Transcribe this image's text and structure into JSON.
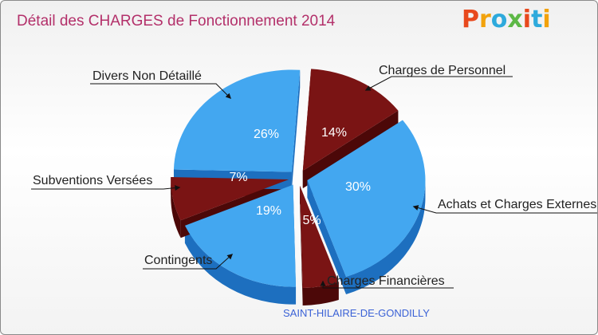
{
  "title": "Détail des CHARGES de Fonctionnement 2014",
  "logo": {
    "letters": [
      "P",
      "r",
      "o",
      "x",
      "i",
      "t",
      "i"
    ],
    "colors": [
      "#e8491d",
      "#f2a20c",
      "#2eaadc",
      "#5db846",
      "#e8491d",
      "#2eaadc",
      "#f2a20c"
    ]
  },
  "place_name": "SAINT-HILAIRE-DE-GONDILLY",
  "colors": {
    "blue": "#43a7f0",
    "blue_side": "#1d6fbf",
    "maroon": "#7a1414",
    "maroon_side": "#4c0808"
  },
  "chart_data": {
    "type": "pie",
    "title": "Détail des CHARGES de Fonctionnement 2014",
    "slices": [
      {
        "label": "Charges de Personnel",
        "value": 14,
        "display": "14%",
        "color": "maroon"
      },
      {
        "label": "Achats et Charges Externes",
        "value": 30,
        "display": "30%",
        "color": "blue"
      },
      {
        "label": "Charges Financières",
        "value": 5,
        "display": "5%",
        "color": "maroon"
      },
      {
        "label": "Contingents",
        "value": 19,
        "display": "19%",
        "color": "blue"
      },
      {
        "label": "Subventions Versées",
        "value": 7,
        "display": "7%",
        "color": "maroon"
      },
      {
        "label": "Divers Non Détaillé",
        "value": 26,
        "display": "26%",
        "color": "blue"
      }
    ]
  }
}
